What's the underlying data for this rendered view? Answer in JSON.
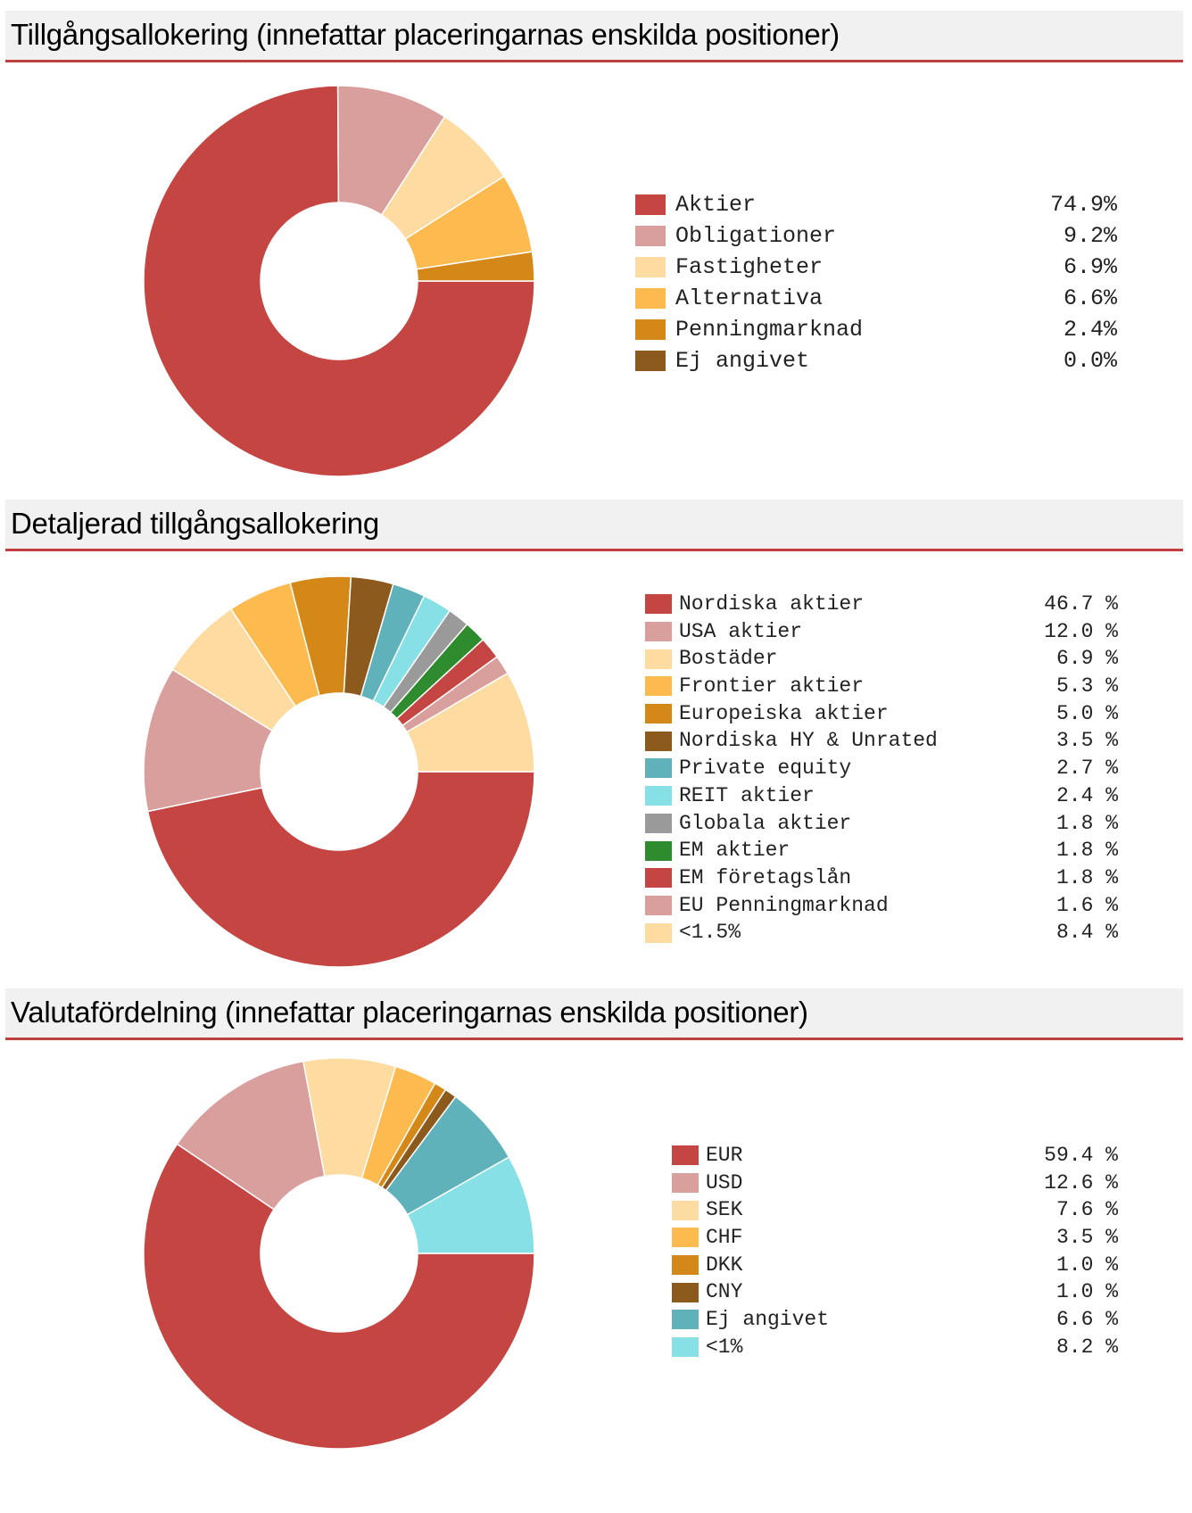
{
  "chart_data": [
    {
      "type": "pie",
      "title": "Tillgångsallokering (innefattar placeringarnas enskilda positioner)",
      "slices": [
        {
          "label": "Aktier",
          "value": 74.9,
          "display": "74.9%",
          "color": "#c44541"
        },
        {
          "label": "Obligationer",
          "value": 9.2,
          "display": "9.2%",
          "color": "#d99f9d"
        },
        {
          "label": "Fastigheter",
          "value": 6.9,
          "display": "6.9%",
          "color": "#fedba1"
        },
        {
          "label": "Alternativa",
          "value": 6.6,
          "display": "6.6%",
          "color": "#fdba4f"
        },
        {
          "label": "Penningmarknad",
          "value": 2.4,
          "display": "2.4%",
          "color": "#d48818"
        },
        {
          "label": "Ej angivet",
          "value": 0.0,
          "display": "0.0%",
          "color": "#8b5a1c"
        }
      ]
    },
    {
      "type": "pie",
      "title": "Detaljerad tillgångsallokering",
      "slices": [
        {
          "label": "Nordiska aktier",
          "value": 46.7,
          "display": "46.7 %",
          "color": "#c44541"
        },
        {
          "label": "USA aktier",
          "value": 12.0,
          "display": "12.0 %",
          "color": "#d99f9d"
        },
        {
          "label": "Bostäder",
          "value": 6.9,
          "display": "6.9 %",
          "color": "#fedba1"
        },
        {
          "label": "Frontier aktier",
          "value": 5.3,
          "display": "5.3 %",
          "color": "#fdba4f"
        },
        {
          "label": "Europeiska aktier",
          "value": 5.0,
          "display": "5.0 %",
          "color": "#d48818"
        },
        {
          "label": "Nordiska HY & Unrated",
          "value": 3.5,
          "display": "3.5 %",
          "color": "#8b5a1c"
        },
        {
          "label": "Private equity",
          "value": 2.7,
          "display": "2.7 %",
          "color": "#5fb2ba"
        },
        {
          "label": "REIT aktier",
          "value": 2.4,
          "display": "2.4 %",
          "color": "#86e0e6"
        },
        {
          "label": "Globala aktier",
          "value": 1.8,
          "display": "1.8 %",
          "color": "#9a9a9a"
        },
        {
          "label": "EM aktier",
          "value": 1.8,
          "display": "1.8 %",
          "color": "#2e8b2e"
        },
        {
          "label": "EM företagslån",
          "value": 1.8,
          "display": "1.8 %",
          "color": "#c44541"
        },
        {
          "label": "EU Penningmarknad",
          "value": 1.6,
          "display": "1.6 %",
          "color": "#d99f9d"
        },
        {
          "label": "<1.5%",
          "value": 8.4,
          "display": "8.4 %",
          "color": "#fedba1"
        }
      ]
    },
    {
      "type": "pie",
      "title": "Valutafördelning (innefattar placeringarnas enskilda positioner)",
      "slices": [
        {
          "label": "EUR",
          "value": 59.4,
          "display": "59.4 %",
          "color": "#c44541"
        },
        {
          "label": "USD",
          "value": 12.6,
          "display": "12.6 %",
          "color": "#d99f9d"
        },
        {
          "label": "SEK",
          "value": 7.6,
          "display": "7.6 %",
          "color": "#fedba1"
        },
        {
          "label": "CHF",
          "value": 3.5,
          "display": "3.5 %",
          "color": "#fdba4f"
        },
        {
          "label": "DKK",
          "value": 1.0,
          "display": "1.0 %",
          "color": "#d48818"
        },
        {
          "label": "CNY",
          "value": 1.0,
          "display": "1.0 %",
          "color": "#8b5a1c"
        },
        {
          "label": "Ej angivet",
          "value": 6.6,
          "display": "6.6 %",
          "color": "#5fb2ba"
        },
        {
          "label": "<1%",
          "value": 8.2,
          "display": "8.2 %",
          "color": "#86e0e6"
        }
      ]
    }
  ]
}
